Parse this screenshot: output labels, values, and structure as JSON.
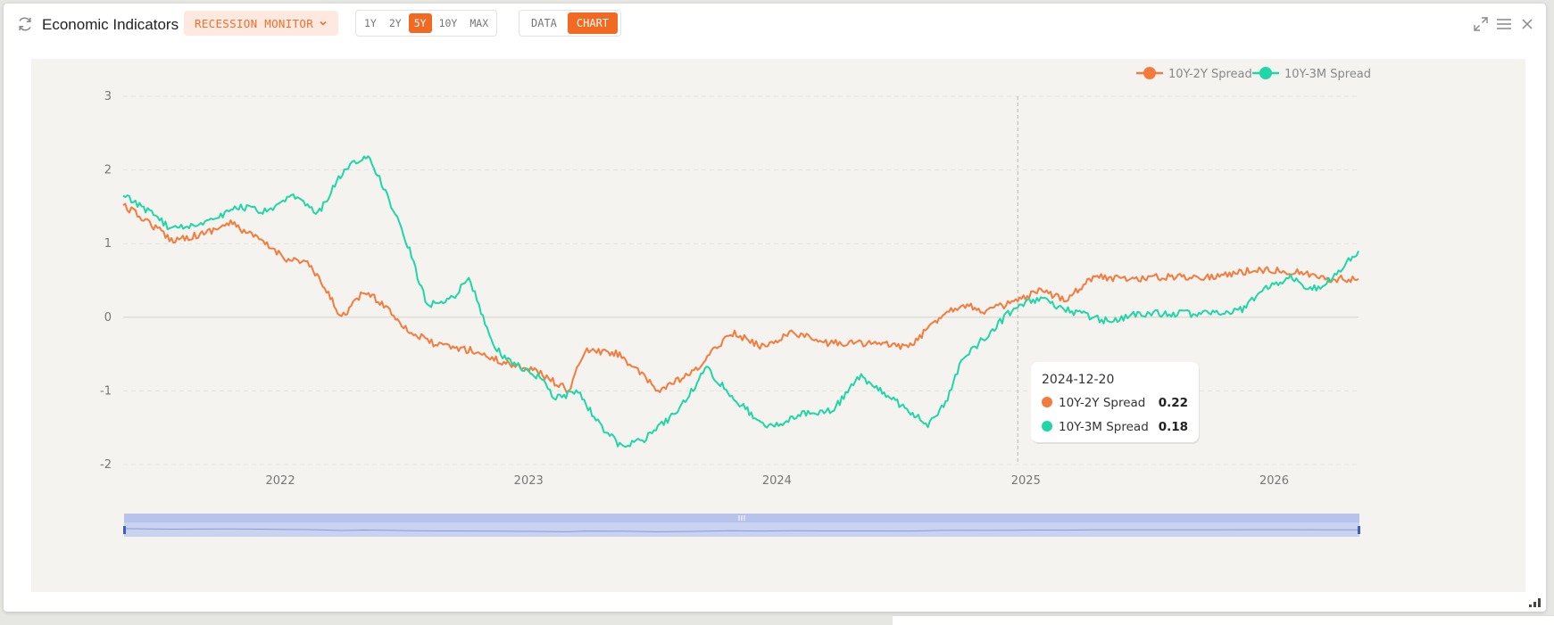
{
  "header": {
    "title": "Economic Indicators",
    "badge_label": "RECESSION MONITOR",
    "ranges": [
      "1Y",
      "2Y",
      "5Y",
      "10Y",
      "MAX"
    ],
    "active_range": "5Y",
    "views": [
      "DATA",
      "CHART"
    ],
    "active_view": "CHART",
    "icons": [
      "refresh-icon",
      "chevron-down-icon",
      "expand-icon",
      "menu-icon",
      "close-icon"
    ]
  },
  "colors": {
    "accent": "#f26a21",
    "series_2y": "#f47b3c",
    "series_3m": "#1fd6a6",
    "chart_bg": "#f4f3ef",
    "navigator": "#c9d3f1"
  },
  "chart_data": {
    "type": "line",
    "x_range": [
      "2021-05-15",
      "2026-05-05"
    ],
    "x_ticks": [
      "2022",
      "2023",
      "2024",
      "2025",
      "2026"
    ],
    "y_ticks": [
      "3",
      "2",
      "1",
      "0",
      "-1",
      "-2"
    ],
    "ylim": [
      -2,
      3
    ],
    "grid": true,
    "legend_position": "top-right",
    "series": [
      {
        "name": "10Y-2Y Spread",
        "color": "#f47b3c",
        "points": [
          [
            "2021-05-15",
            1.52
          ],
          [
            "2021-06-20",
            1.3
          ],
          [
            "2021-07-25",
            1.05
          ],
          [
            "2021-09-05",
            1.12
          ],
          [
            "2021-10-20",
            1.28
          ],
          [
            "2021-12-01",
            1.05
          ],
          [
            "2022-01-10",
            0.8
          ],
          [
            "2022-02-10",
            0.74
          ],
          [
            "2022-03-10",
            0.35
          ],
          [
            "2022-04-01",
            0.0
          ],
          [
            "2022-05-05",
            0.35
          ],
          [
            "2022-06-05",
            0.15
          ],
          [
            "2022-07-10",
            -0.2
          ],
          [
            "2022-08-20",
            -0.38
          ],
          [
            "2022-10-10",
            -0.45
          ],
          [
            "2022-11-20",
            -0.6
          ],
          [
            "2023-01-10",
            -0.72
          ],
          [
            "2023-03-01",
            -1.0
          ],
          [
            "2023-03-25",
            -0.45
          ],
          [
            "2023-05-15",
            -0.5
          ],
          [
            "2023-07-10",
            -1.0
          ],
          [
            "2023-09-01",
            -0.75
          ],
          [
            "2023-10-25",
            -0.2
          ],
          [
            "2023-12-10",
            -0.4
          ],
          [
            "2024-01-25",
            -0.2
          ],
          [
            "2024-03-10",
            -0.35
          ],
          [
            "2024-05-10",
            -0.35
          ],
          [
            "2024-07-15",
            -0.4
          ],
          [
            "2024-09-01",
            0.05
          ],
          [
            "2024-10-01",
            0.18
          ],
          [
            "2024-11-01",
            0.08
          ],
          [
            "2024-12-20",
            0.22
          ],
          [
            "2025-01-20",
            0.35
          ],
          [
            "2025-03-01",
            0.25
          ],
          [
            "2025-04-10",
            0.55
          ],
          [
            "2025-06-01",
            0.52
          ],
          [
            "2025-08-01",
            0.55
          ],
          [
            "2025-10-01",
            0.55
          ],
          [
            "2025-12-10",
            0.65
          ],
          [
            "2026-02-01",
            0.62
          ],
          [
            "2026-03-20",
            0.52
          ],
          [
            "2026-05-05",
            0.52
          ]
        ]
      },
      {
        "name": "10Y-3M Spread",
        "color": "#1fd6a6",
        "points": [
          [
            "2021-05-15",
            1.65
          ],
          [
            "2021-06-20",
            1.45
          ],
          [
            "2021-07-25",
            1.2
          ],
          [
            "2021-09-15",
            1.3
          ],
          [
            "2021-11-01",
            1.5
          ],
          [
            "2021-12-15",
            1.42
          ],
          [
            "2022-01-20",
            1.65
          ],
          [
            "2022-02-25",
            1.4
          ],
          [
            "2022-04-05",
            2.0
          ],
          [
            "2022-05-10",
            2.2
          ],
          [
            "2022-06-10",
            1.6
          ],
          [
            "2022-07-10",
            0.9
          ],
          [
            "2022-08-05",
            0.15
          ],
          [
            "2022-09-15",
            0.3
          ],
          [
            "2022-10-05",
            0.55
          ],
          [
            "2022-11-10",
            -0.4
          ],
          [
            "2022-12-05",
            -0.6
          ],
          [
            "2023-01-15",
            -0.8
          ],
          [
            "2023-02-10",
            -1.1
          ],
          [
            "2023-03-15",
            -1.0
          ],
          [
            "2023-04-10",
            -1.4
          ],
          [
            "2023-05-15",
            -1.75
          ],
          [
            "2023-06-20",
            -1.65
          ],
          [
            "2023-08-05",
            -1.3
          ],
          [
            "2023-09-20",
            -0.7
          ],
          [
            "2023-11-10",
            -1.2
          ],
          [
            "2023-12-20",
            -1.5
          ],
          [
            "2024-02-10",
            -1.3
          ],
          [
            "2024-03-25",
            -1.25
          ],
          [
            "2024-05-01",
            -0.8
          ],
          [
            "2024-06-01",
            -1.0
          ],
          [
            "2024-07-10",
            -1.25
          ],
          [
            "2024-08-10",
            -1.45
          ],
          [
            "2024-09-05",
            -1.15
          ],
          [
            "2024-10-01",
            -0.55
          ],
          [
            "2024-11-10",
            -0.2
          ],
          [
            "2024-12-20",
            0.18
          ],
          [
            "2025-01-20",
            0.25
          ],
          [
            "2025-03-01",
            0.1
          ],
          [
            "2025-05-01",
            -0.05
          ],
          [
            "2025-06-20",
            0.05
          ],
          [
            "2025-09-01",
            0.05
          ],
          [
            "2025-11-15",
            0.1
          ],
          [
            "2025-12-20",
            0.4
          ],
          [
            "2026-01-25",
            0.55
          ],
          [
            "2026-02-20",
            0.35
          ],
          [
            "2026-03-25",
            0.5
          ],
          [
            "2026-05-05",
            0.9
          ]
        ]
      }
    ],
    "hover": {
      "date": "2024-12-20",
      "rows": [
        {
          "name": "10Y-2Y Spread",
          "value": "0.22"
        },
        {
          "name": "10Y-3M Spread",
          "value": "0.18"
        }
      ]
    }
  }
}
